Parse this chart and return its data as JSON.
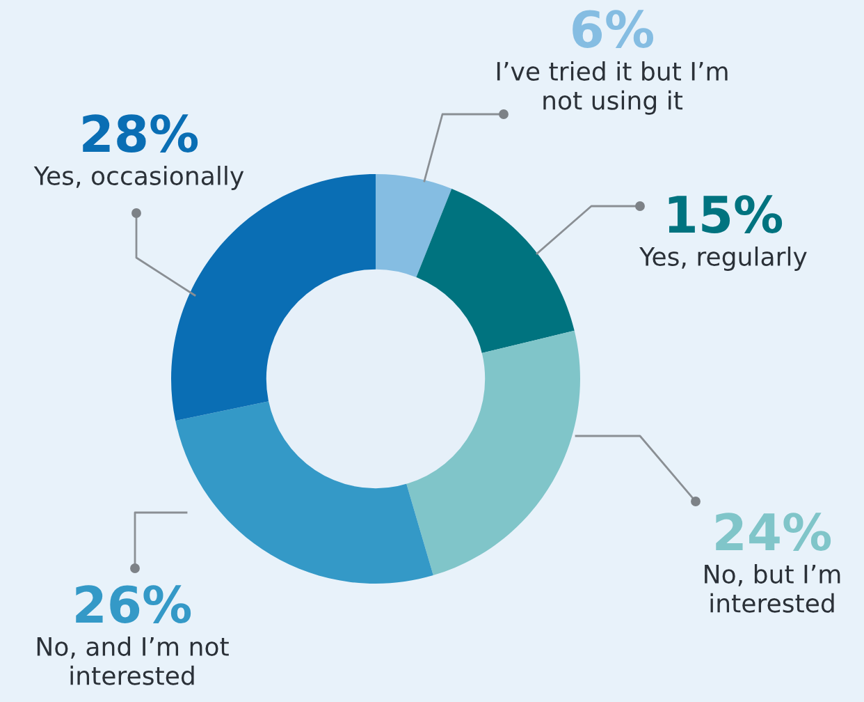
{
  "chart_data": {
    "type": "donut",
    "categories": [
      "I’ve tried it but I’m not using it",
      "Yes, regularly",
      "No, but I’m interested",
      "No, and I’m not interested",
      "Yes, occasionally"
    ],
    "values": [
      6,
      15,
      24,
      26,
      28
    ],
    "value_labels": [
      "6%",
      "15%",
      "24%",
      "26%",
      "28%"
    ],
    "colors": [
      "#85bde2",
      "#00737f",
      "#80c5c9",
      "#3499c7",
      "#0a6eb4"
    ],
    "legend": false
  }
}
